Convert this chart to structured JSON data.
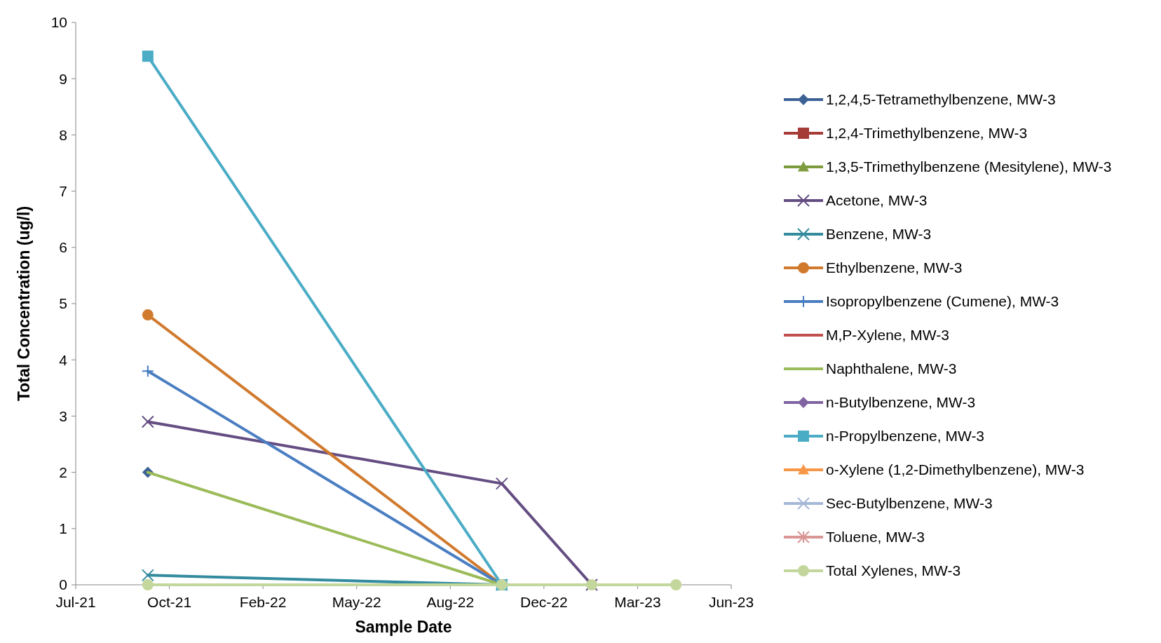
{
  "chart_data": {
    "type": "line",
    "xlabel": "Sample Date",
    "ylabel": "Total Concentration (ug/l)",
    "x": [
      "2021-10-08",
      "2022-10-21",
      "2023-01-25",
      "2023-04-25"
    ],
    "xlim": [
      "2021-07-23",
      "2023-06-23"
    ],
    "xticks": [
      {
        "value": "2021-07-23",
        "label": "Jul-21"
      },
      {
        "value": "2021-10-31",
        "label": "Oct-21"
      },
      {
        "value": "2022-02-08",
        "label": "Feb-22"
      },
      {
        "value": "2022-05-19",
        "label": "May-22"
      },
      {
        "value": "2022-08-27",
        "label": "Aug-22"
      },
      {
        "value": "2022-12-05",
        "label": "Dec-22"
      },
      {
        "value": "2023-03-15",
        "label": "Mar-23"
      },
      {
        "value": "2023-06-23",
        "label": "Jun-23"
      }
    ],
    "ylim": [
      0,
      10
    ],
    "yticks": [
      0,
      1,
      2,
      3,
      4,
      5,
      6,
      7,
      8,
      9,
      10
    ],
    "grid": false,
    "legend": "right",
    "line_style": "solid",
    "series": [
      {
        "name": "1,2,4,5-Tetramethylbenzene, MW-3",
        "color": "#3c6195",
        "marker": "diamond",
        "values": [
          2,
          null,
          null,
          null
        ]
      },
      {
        "name": "1,2,4-Trimethylbenzene, MW-3",
        "color": "#a63c38",
        "marker": "square",
        "values": [
          null,
          null,
          null,
          null
        ]
      },
      {
        "name": "1,3,5-Trimethylbenzene (Mesitylene), MW-3",
        "color": "#7e9c3e",
        "marker": "triangle",
        "values": [
          null,
          null,
          null,
          null
        ]
      },
      {
        "name": "Acetone, MW-3",
        "color": "#644d82",
        "marker": "cross",
        "values": [
          2.9,
          1.8,
          0,
          null
        ]
      },
      {
        "name": "Benzene, MW-3",
        "color": "#338b9e",
        "marker": "cross",
        "values": [
          0.17,
          0,
          null,
          null
        ]
      },
      {
        "name": "Ethylbenzene, MW-3",
        "color": "#d17a2e",
        "marker": "circle",
        "values": [
          4.8,
          0,
          null,
          null
        ]
      },
      {
        "name": "Isopropylbenzene (Cumene), MW-3",
        "color": "#4a7ec2",
        "marker": "plus",
        "values": [
          3.8,
          0,
          null,
          null
        ]
      },
      {
        "name": "M,P-Xylene, MW-3",
        "color": "#c0504d",
        "marker": "none",
        "values": [
          null,
          null,
          null,
          null
        ]
      },
      {
        "name": "Naphthalene, MW-3",
        "color": "#9bbb59",
        "marker": "none",
        "values": [
          2,
          0,
          null,
          null
        ]
      },
      {
        "name": "n-Butylbenzene, MW-3",
        "color": "#8064a2",
        "marker": "diamond",
        "values": [
          null,
          null,
          null,
          null
        ]
      },
      {
        "name": "n-Propylbenzene, MW-3",
        "color": "#4bacc6",
        "marker": "square",
        "values": [
          9.4,
          0,
          null,
          null
        ]
      },
      {
        "name": "o-Xylene (1,2-Dimethylbenzene), MW-3",
        "color": "#f79646",
        "marker": "triangle",
        "values": [
          null,
          null,
          null,
          null
        ]
      },
      {
        "name": "Sec-Butylbenzene, MW-3",
        "color": "#a5b8d8",
        "marker": "cross",
        "values": [
          null,
          null,
          null,
          null
        ]
      },
      {
        "name": "Toluene, MW-3",
        "color": "#d99694",
        "marker": "star",
        "values": [
          null,
          null,
          null,
          null
        ]
      },
      {
        "name": "Total Xylenes, MW-3",
        "color": "#c3d69b",
        "marker": "circle",
        "values": [
          0,
          0,
          0,
          0
        ]
      }
    ]
  }
}
